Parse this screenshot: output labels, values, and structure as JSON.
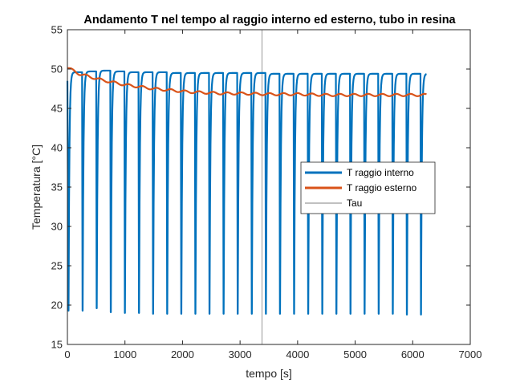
{
  "chart_data": {
    "type": "line",
    "title": "Andamento T nel tempo al raggio interno ed esterno, tubo in resina",
    "xlabel": "tempo [s]",
    "ylabel": "Temperatura [°C]",
    "xlim": [
      0,
      7000
    ],
    "ylim": [
      15,
      55
    ],
    "xticks": [
      0,
      1000,
      2000,
      3000,
      4000,
      5000,
      6000,
      7000
    ],
    "yticks": [
      15,
      20,
      25,
      30,
      35,
      40,
      45,
      50,
      55
    ],
    "xtick_labels": [
      "0",
      "1000",
      "2000",
      "3000",
      "4000",
      "5000",
      "6000",
      "7000"
    ],
    "ytick_labels": [
      "15",
      "20",
      "25",
      "30",
      "35",
      "40",
      "45",
      "50",
      "55"
    ],
    "grid": false,
    "legend_position": "center-right",
    "series": [
      {
        "name": "T raggio interno",
        "color": "#0072BD",
        "style": "periodic",
        "period_s": 245,
        "x_start": 20,
        "x_end": 6240,
        "peak": [
          49.6,
          49.7,
          49.8,
          49.7,
          49.6,
          49.6,
          49.6,
          49.5,
          49.5,
          49.5,
          49.5,
          49.5,
          49.5,
          49.5,
          49.4,
          49.4,
          49.4,
          49.4,
          49.4,
          49.4,
          49.4,
          49.4,
          49.4,
          49.4,
          49.4,
          49.4
        ],
        "trough": [
          19.3,
          19.6,
          19.1,
          19.0,
          19.0,
          18.9,
          18.9,
          18.9,
          18.9,
          18.9,
          18.9,
          18.9,
          18.9,
          18.9,
          18.9,
          18.9,
          18.9,
          18.9,
          18.9,
          18.9,
          18.9,
          18.9,
          18.9,
          18.8,
          18.8
        ]
      },
      {
        "name": "T raggio esterno",
        "color": "#D95319",
        "x": [
          0,
          200,
          400,
          600,
          800,
          1000,
          1200,
          1500,
          1800,
          2100,
          2400,
          2700,
          3000,
          3500,
          4000,
          4500,
          5000,
          5500,
          6000,
          6240
        ],
        "y": [
          50.2,
          49.4,
          49.0,
          48.6,
          48.3,
          48.0,
          47.8,
          47.5,
          47.3,
          47.1,
          47.0,
          46.9,
          46.9,
          46.8,
          46.8,
          46.7,
          46.7,
          46.7,
          46.7,
          46.7
        ],
        "ripple": 0.15
      },
      {
        "name": "Tau",
        "color": "#808080",
        "type": "vline",
        "x": 3380
      }
    ]
  }
}
